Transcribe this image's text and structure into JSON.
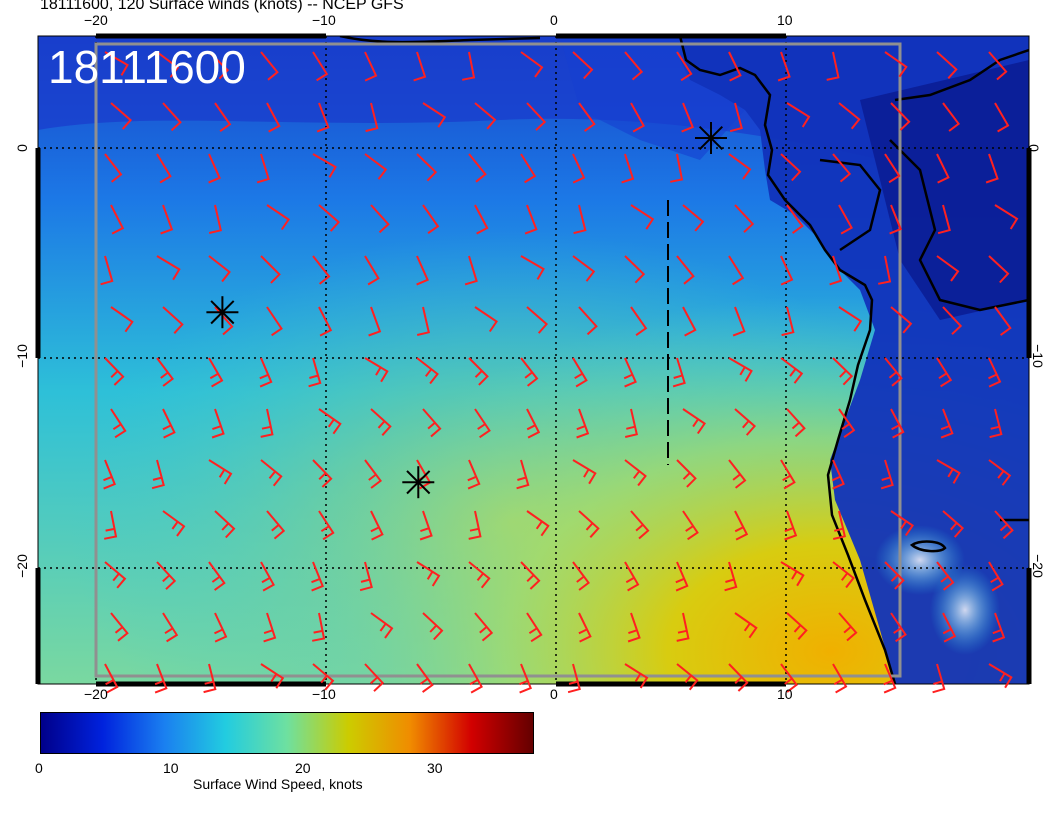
{
  "title": "18111600, 120 Surface winds (knots) -- NCEP GFS",
  "timestamp_label": "18111600",
  "map": {
    "lon_range": [
      -22.5,
      20.5
    ],
    "lat_range": [
      -25.5,
      5
    ],
    "x_ticks": [
      "−20",
      "−10",
      "0",
      "10"
    ],
    "y_ticks": [
      "0",
      "−10",
      "−20"
    ],
    "markers": [
      {
        "lon": -14.5,
        "lat": -8.0,
        "symbol": "asterisk"
      },
      {
        "lon": -6.0,
        "lat": -16.0,
        "symbol": "asterisk"
      },
      {
        "lon": 6.7,
        "lat": 0.2,
        "symbol": "asterisk"
      }
    ],
    "barb_color": "#ff2020"
  },
  "colorbar": {
    "label": "Surface Wind Speed, knots",
    "ticks": [
      "0",
      "10",
      "20",
      "30"
    ],
    "range": [
      0,
      37
    ],
    "colors": [
      "#00008a",
      "#0022dd",
      "#1a7ff0",
      "#22cce0",
      "#6ee0a0",
      "#cccc00",
      "#f08c00",
      "#d20000",
      "#640000"
    ]
  }
}
